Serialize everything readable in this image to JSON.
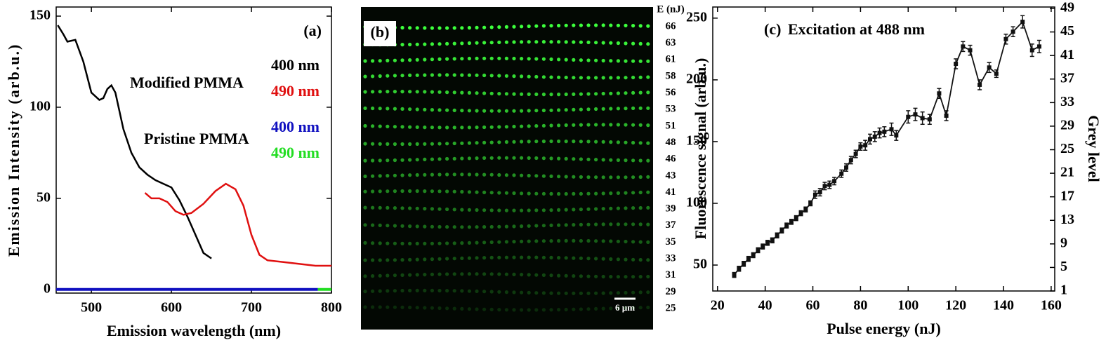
{
  "chart_data": [
    {
      "type": "line",
      "panel_label": "(a)",
      "x_label": "Emission wavelength (nm)",
      "y_label": "Emission Intensity (arb.u.)",
      "xlim": [
        456,
        800
      ],
      "ylim": [
        -2,
        155
      ],
      "xticks": [
        500,
        600,
        700,
        800
      ],
      "yticks": [
        0,
        50,
        100,
        150
      ],
      "annotations": [
        {
          "text": "Modified PMMA"
        },
        {
          "text": "Pristine PMMA"
        }
      ],
      "series": [
        {
          "name": "400 nm",
          "color": "#000000",
          "x": [
            458,
            465,
            470,
            480,
            490,
            500,
            510,
            515,
            520,
            525,
            530,
            540,
            550,
            560,
            570,
            580,
            590,
            600,
            610,
            620,
            630,
            640,
            650
          ],
          "values": [
            145,
            140,
            136,
            137,
            125,
            108,
            104,
            105,
            110,
            112,
            108,
            88,
            75,
            67,
            63,
            60,
            58,
            56,
            49,
            40,
            30,
            20,
            17
          ]
        },
        {
          "name": "490 nm",
          "color": "#e01010",
          "x": [
            567,
            575,
            585,
            595,
            605,
            615,
            625,
            640,
            655,
            668,
            680,
            690,
            700,
            710,
            720,
            740,
            760,
            780,
            800
          ],
          "values": [
            53,
            50,
            50,
            48,
            43,
            41,
            42,
            47,
            54,
            58,
            55,
            46,
            30,
            19,
            16,
            15,
            14,
            13,
            13
          ]
        },
        {
          "name": "400 nm",
          "color": "#1010c0",
          "x": [
            456,
            783
          ],
          "values": [
            0,
            0
          ]
        },
        {
          "name": "490 nm",
          "color": "#22dd22",
          "x": [
            783,
            800
          ],
          "values": [
            0,
            0
          ]
        }
      ]
    },
    {
      "type": "image",
      "panel_label": "(b)",
      "label_header": "E (nJ)",
      "scale_bar": "6 µm",
      "rows": [
        66,
        63,
        61,
        58,
        56,
        53,
        51,
        48,
        46,
        43,
        41,
        39,
        37,
        35,
        33,
        31,
        29,
        25
      ]
    },
    {
      "type": "scatter",
      "panel_label": "(c)",
      "title": "Excitation at 488 nm",
      "x_label": "Pulse energy (nJ)",
      "y_label": "Fluorescence signal (arb.u.)",
      "y2_label": "Grey level",
      "xlim": [
        18,
        161.5
      ],
      "ylim": [
        29,
        259
      ],
      "y2lim": [
        1,
        49
      ],
      "xticks": [
        20,
        40,
        60,
        80,
        100,
        120,
        140,
        160
      ],
      "yticks": [
        50,
        100,
        150,
        200,
        250
      ],
      "y2ticks": [
        1,
        5,
        9,
        13,
        17,
        21,
        25,
        29,
        33,
        37,
        41,
        45,
        49
      ],
      "color": "#111111",
      "x": [
        27,
        29,
        31,
        33,
        35,
        37,
        39,
        41,
        43,
        45,
        47,
        49,
        51,
        53,
        55,
        57,
        59,
        61,
        63,
        65,
        67,
        69,
        72,
        74,
        76,
        78,
        80,
        82,
        84,
        86,
        88,
        90,
        93,
        95,
        100,
        103,
        106,
        109,
        113,
        116,
        120,
        123,
        126,
        130,
        134,
        137,
        141,
        144,
        148,
        152,
        155
      ],
      "values": [
        42,
        47,
        51,
        55,
        58,
        62,
        65,
        68,
        70,
        74,
        78,
        82,
        85,
        88,
        92,
        95,
        100,
        107,
        109,
        114,
        115,
        118,
        124,
        129,
        135,
        140,
        146,
        147,
        152,
        154,
        157,
        158,
        160,
        155,
        170,
        172,
        169,
        168,
        189,
        171,
        213,
        227,
        224,
        196,
        210,
        205,
        233,
        239,
        247,
        224,
        227
      ],
      "errors": [
        2,
        2,
        2,
        2,
        2,
        2,
        2,
        2,
        2,
        2,
        2,
        2,
        2,
        2,
        2,
        2,
        2,
        3,
        3,
        3,
        3,
        3,
        3,
        3,
        3,
        3,
        3,
        4,
        4,
        4,
        4,
        4,
        5,
        4,
        5,
        5,
        5,
        4,
        4,
        4,
        4,
        4,
        4,
        4,
        4,
        3,
        4,
        4,
        5,
        5,
        5
      ]
    }
  ]
}
